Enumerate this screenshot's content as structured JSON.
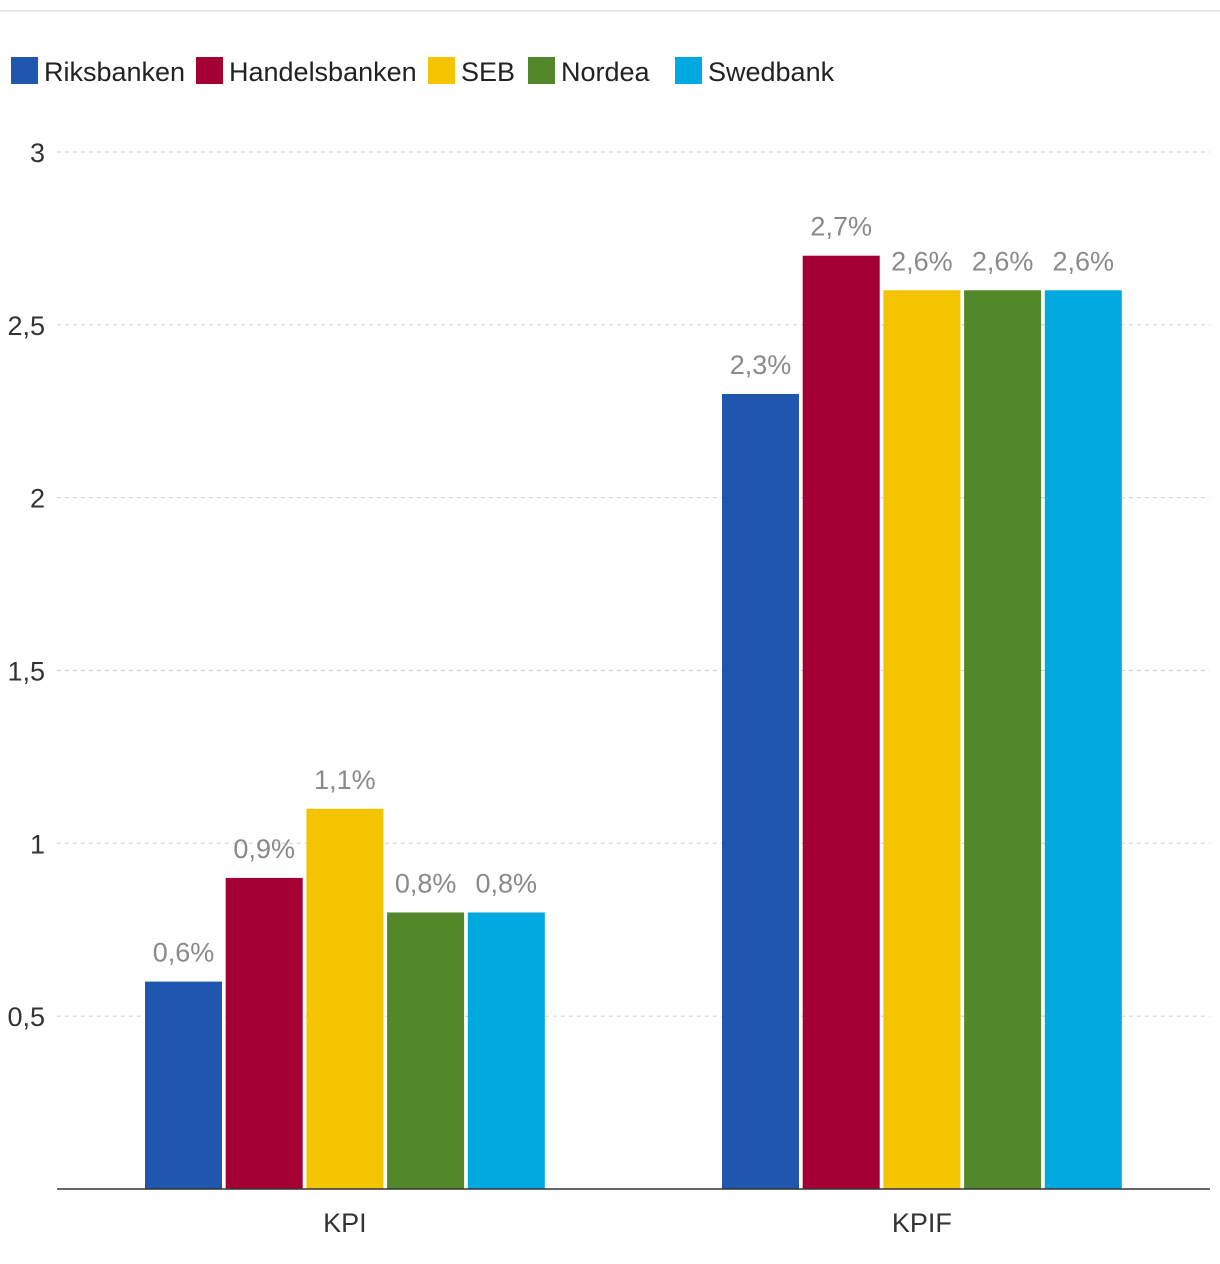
{
  "chart_data": {
    "type": "bar",
    "categories": [
      "KPI",
      "KPIF"
    ],
    "series": [
      {
        "name": "Riksbanken",
        "color": "#2057ae",
        "values": [
          0.6,
          2.3
        ],
        "labels": [
          "0,6%",
          "2,3%"
        ]
      },
      {
        "name": "Handelsbanken",
        "color": "#a50034",
        "values": [
          0.9,
          2.7
        ],
        "labels": [
          "0,9%",
          "2,7%"
        ]
      },
      {
        "name": "SEB",
        "color": "#f5c400",
        "values": [
          1.1,
          2.6
        ],
        "labels": [
          "1,1%",
          "2,6%"
        ]
      },
      {
        "name": "Nordea",
        "color": "#52872a",
        "values": [
          0.8,
          2.6
        ],
        "labels": [
          "0,8%",
          "2,6%"
        ]
      },
      {
        "name": "Swedbank",
        "color": "#00a9e0",
        "values": [
          0.8,
          2.6
        ],
        "labels": [
          "0,8%",
          "2,6%"
        ]
      }
    ],
    "y_ticks": [
      {
        "value": 0.5,
        "label": "0,5"
      },
      {
        "value": 1,
        "label": "1"
      },
      {
        "value": 1.5,
        "label": "1,5"
      },
      {
        "value": 2,
        "label": "2"
      },
      {
        "value": 2.5,
        "label": "2,5"
      },
      {
        "value": 3,
        "label": "3"
      }
    ],
    "ylim": [
      0,
      3
    ],
    "title": "",
    "xlabel": "",
    "ylabel": "",
    "grid": true,
    "legend_position": "top-left"
  }
}
